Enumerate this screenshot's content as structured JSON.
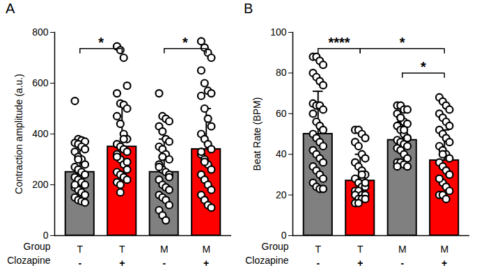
{
  "chart_data": [
    {
      "type": "bar",
      "title": "A",
      "y_label": "Contraction amplitude (a.u.)",
      "row_labels": [
        "Group",
        "Clozapine"
      ],
      "categories": [
        "T",
        "T",
        "M",
        "M"
      ],
      "clozapine": [
        "-",
        "+",
        "-",
        "+"
      ],
      "values": [
        250,
        350,
        250,
        340
      ],
      "errors": [
        130,
        170,
        130,
        160
      ],
      "colors": [
        "#808080",
        "#ff0000",
        "#808080",
        "#ff0000"
      ],
      "points": [
        [
          530,
          380,
          375,
          370,
          365,
          360,
          350,
          340,
          330,
          310,
          300,
          280,
          270,
          260,
          250,
          240,
          230,
          220,
          210,
          200,
          190,
          180,
          170,
          160,
          150,
          140,
          135,
          130,
          200,
          300
        ],
        [
          745,
          730,
          700,
          590,
          560,
          520,
          515,
          500,
          470,
          440,
          400,
          380,
          360,
          350,
          340,
          330,
          320,
          300,
          280,
          260,
          250,
          240,
          230,
          220,
          210,
          200,
          380,
          290,
          310,
          170
        ],
        [
          560,
          470,
          460,
          450,
          430,
          410,
          380,
          370,
          350,
          340,
          320,
          300,
          280,
          260,
          250,
          240,
          220,
          200,
          190,
          180,
          160,
          150,
          140,
          120,
          100,
          80,
          60,
          230,
          270,
          310
        ],
        [
          765,
          740,
          720,
          700,
          650,
          600,
          570,
          560,
          550,
          500,
          460,
          430,
          400,
          380,
          360,
          340,
          320,
          300,
          280,
          260,
          240,
          220,
          200,
          180,
          160,
          140,
          120,
          110,
          330,
          290
        ]
      ],
      "annotations": [
        {
          "from": 0,
          "to": 1,
          "label": "*"
        },
        {
          "from": 2,
          "to": 3,
          "label": "*"
        }
      ],
      "ylim": [
        0,
        800
      ],
      "yticks": [
        0,
        200,
        400,
        600,
        800
      ]
    },
    {
      "type": "bar",
      "title": "B",
      "y_label": "Beat Rate (BPM)",
      "row_labels": [
        "Group",
        "Clozapine"
      ],
      "categories": [
        "T",
        "T",
        "M",
        "M"
      ],
      "clozapine": [
        "-",
        "+",
        "-",
        "+"
      ],
      "values": [
        50,
        27,
        47,
        37
      ],
      "errors": [
        21,
        13,
        9,
        15
      ],
      "colors": [
        "#808080",
        "#ff0000",
        "#808080",
        "#ff0000"
      ],
      "points": [
        [
          88,
          88,
          86,
          84,
          80,
          78,
          76,
          74,
          65,
          64,
          64,
          62,
          60,
          56,
          54,
          52,
          50,
          48,
          46,
          44,
          42,
          40,
          38,
          36,
          34,
          32,
          30,
          28,
          26,
          24,
          23,
          23
        ],
        [
          52,
          52,
          50,
          48,
          46,
          44,
          40,
          38,
          36,
          34,
          32,
          30,
          28,
          26,
          24,
          24,
          22,
          22,
          20,
          20,
          20,
          18,
          18,
          18,
          16,
          16,
          30,
          26
        ],
        [
          64,
          64,
          62,
          62,
          60,
          58,
          56,
          55,
          54,
          52,
          50,
          48,
          47,
          46,
          45,
          44,
          43,
          42,
          40,
          38,
          36,
          36,
          35,
          34,
          34,
          58,
          52,
          48
        ],
        [
          68,
          66,
          64,
          62,
          60,
          58,
          56,
          54,
          52,
          50,
          48,
          46,
          44,
          42,
          40,
          38,
          36,
          34,
          32,
          30,
          28,
          26,
          24,
          22,
          20,
          20,
          18,
          30,
          28,
          40
        ]
      ],
      "annotations": [
        {
          "from": 0,
          "to": 1,
          "label": "****"
        },
        {
          "from": 1,
          "to": 3,
          "label": "*"
        },
        {
          "from": 2,
          "to": 3,
          "label": "*"
        }
      ],
      "ylim": [
        0,
        100
      ],
      "yticks": [
        0,
        20,
        40,
        60,
        80,
        100
      ]
    }
  ]
}
